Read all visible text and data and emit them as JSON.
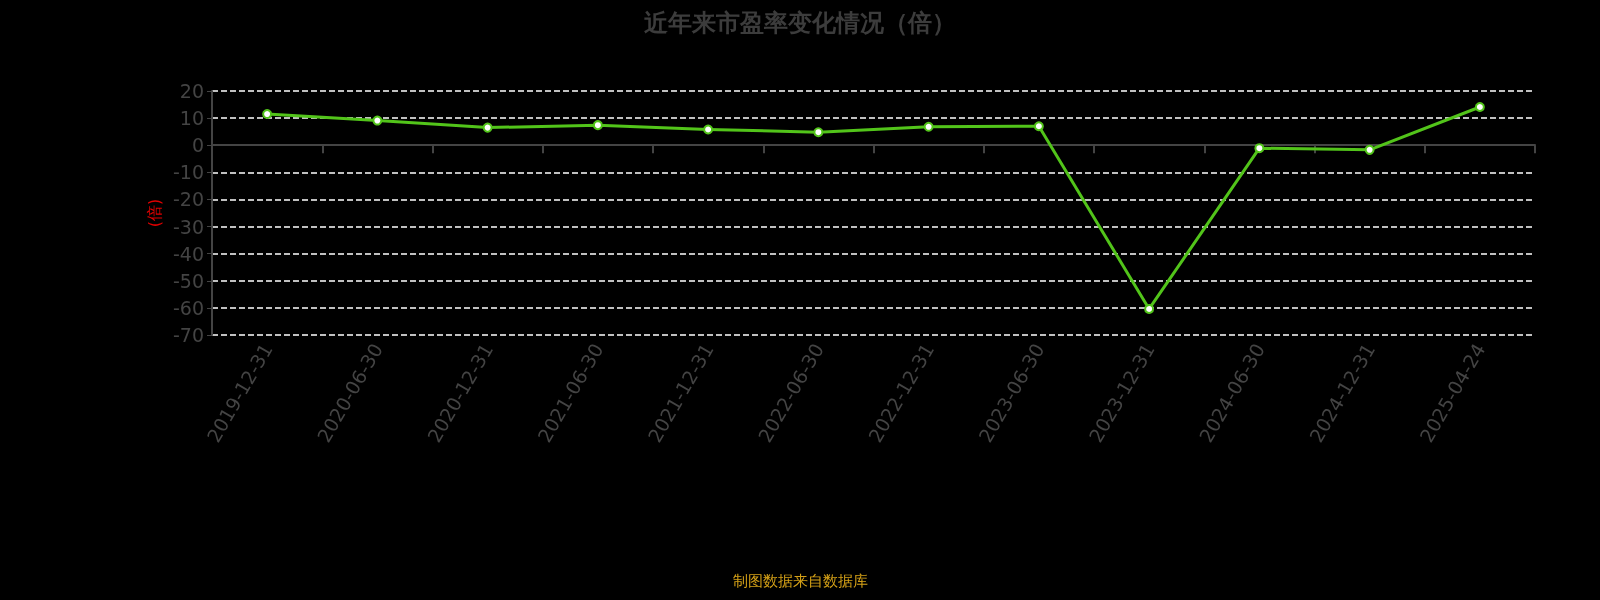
{
  "chart_data": {
    "type": "line",
    "title": "近年来市盈率变化情况（倍）",
    "ylabel": "(倍)",
    "categories": [
      "2019-12-31",
      "2020-06-30",
      "2020-12-31",
      "2021-06-30",
      "2021-12-31",
      "2022-06-30",
      "2022-12-31",
      "2023-06-30",
      "2023-12-31",
      "2024-06-30",
      "2024-12-31",
      "2025-04-24"
    ],
    "series": [
      {
        "color": "#52c41a",
        "values": [
          11.5,
          9.1,
          6.5,
          7.4,
          5.8,
          4.8,
          6.8,
          7.0,
          -60.4,
          -1.1,
          -1.7,
          14.1
        ]
      }
    ],
    "ylim": [
      -70,
      20
    ],
    "yticks": [
      -70,
      -60,
      -50,
      -40,
      -30,
      -20,
      -10,
      0,
      10,
      20
    ],
    "grid": "y",
    "marker": "circle",
    "line_style": "solid",
    "annotations": [
      "制图数据来自数据库"
    ]
  }
}
